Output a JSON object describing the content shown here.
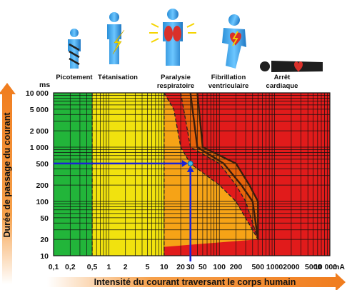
{
  "chart_data": {
    "type": "heatmap",
    "xlabel": "Intensité du courant traversant le corps humain",
    "ylabel": "Durée de passage du courant",
    "x_unit": "mA",
    "y_unit": "ms",
    "x_scale": "log",
    "y_scale": "log",
    "xlim": [
      0.1,
      10000
    ],
    "ylim": [
      10,
      10000
    ],
    "x_ticks": [
      {
        "value": 0.1,
        "label": "0,1"
      },
      {
        "value": 0.2,
        "label": "0,2"
      },
      {
        "value": 0.5,
        "label": "0,5"
      },
      {
        "value": 1,
        "label": "1"
      },
      {
        "value": 2,
        "label": "2"
      },
      {
        "value": 5,
        "label": "5"
      },
      {
        "value": 10,
        "label": "10"
      },
      {
        "value": 20,
        "label": "20"
      },
      {
        "value": 30,
        "label": "30"
      },
      {
        "value": 50,
        "label": "50"
      },
      {
        "value": 100,
        "label": "100"
      },
      {
        "value": 200,
        "label": "200"
      },
      {
        "value": 500,
        "label": "500"
      },
      {
        "value": 1000,
        "label": "1000"
      },
      {
        "value": 2000,
        "label": "2000"
      },
      {
        "value": 5000,
        "label": "5000"
      },
      {
        "value": 10000,
        "label": "10 000"
      }
    ],
    "y_ticks": [
      {
        "value": 10,
        "label": "10"
      },
      {
        "value": 20,
        "label": "20"
      },
      {
        "value": 50,
        "label": "50"
      },
      {
        "value": 100,
        "label": "100"
      },
      {
        "value": 200,
        "label": "200"
      },
      {
        "value": 500,
        "label": "500"
      },
      {
        "value": 1000,
        "label": "1 000"
      },
      {
        "value": 2000,
        "label": "2 000"
      },
      {
        "value": 5000,
        "label": "5 000"
      },
      {
        "value": 10000,
        "label": "10 000"
      }
    ],
    "zones": [
      {
        "name": "Picotement",
        "color": "#22b53a"
      },
      {
        "name": "Tétanisation",
        "color": "#f1e20e"
      },
      {
        "name": "Paralysie respiratoire",
        "color": "#f6a316"
      },
      {
        "name": "Fibrillation ventriculaire",
        "color": "#e8650b"
      },
      {
        "name": "Arrêt cardiaque",
        "color": "#e11b1b"
      }
    ],
    "boundary_curves": {
      "green_yellow_ma": 0.5,
      "yellow_amber_ma": 10,
      "amber_red_dashed": [
        [
          10,
          10000
        ],
        [
          15,
          5000
        ],
        [
          20,
          1000
        ],
        [
          30,
          500
        ],
        [
          100,
          200
        ],
        [
          200,
          100
        ],
        [
          500,
          20
        ]
      ],
      "fibrillation_left_dashed": [
        [
          20,
          10000
        ],
        [
          30,
          1000
        ],
        [
          100,
          500
        ],
        [
          200,
          200
        ],
        [
          300,
          100
        ],
        [
          500,
          20
        ]
      ],
      "fibrillation_curve_1": [
        [
          30,
          10000
        ],
        [
          40,
          1000
        ],
        [
          120,
          500
        ],
        [
          250,
          200
        ],
        [
          400,
          100
        ],
        [
          500,
          20
        ]
      ],
      "fibrillation_curve_2": [
        [
          40,
          10000
        ],
        [
          50,
          1000
        ],
        [
          200,
          500
        ],
        [
          350,
          200
        ],
        [
          500,
          100
        ],
        [
          500,
          20
        ]
      ]
    },
    "highlight_point": {
      "x": 30,
      "y": 500,
      "x_label": "30",
      "y_label": "500",
      "color": "#1a22d8"
    },
    "grid": true
  },
  "axis": {
    "y_unit_label": "ms",
    "x_unit_label": "mA",
    "x_title": "Intensité du courant traversant le corps humain",
    "y_title": "Durée de passage du courant"
  },
  "figures": [
    {
      "icon": "tingling-figure-icon",
      "label_lines": [
        "Picotement"
      ]
    },
    {
      "icon": "tetanization-figure-icon",
      "label_lines": [
        "Tétanisation"
      ]
    },
    {
      "icon": "respiratory-paralysis-figure-icon",
      "label_lines": [
        "Paralysie",
        "respiratoire"
      ]
    },
    {
      "icon": "ventricular-fibrillation-figure-icon",
      "label_lines": [
        "Fibrillation",
        "ventriculaire"
      ]
    },
    {
      "icon": "cardiac-arrest-figure-icon",
      "label_lines": [
        "Arrêt",
        "cardiaque"
      ]
    }
  ],
  "colors": {
    "accent_arrow": "#f07c1e",
    "highlight_blue": "#1a22d8",
    "grid": "#111111"
  }
}
